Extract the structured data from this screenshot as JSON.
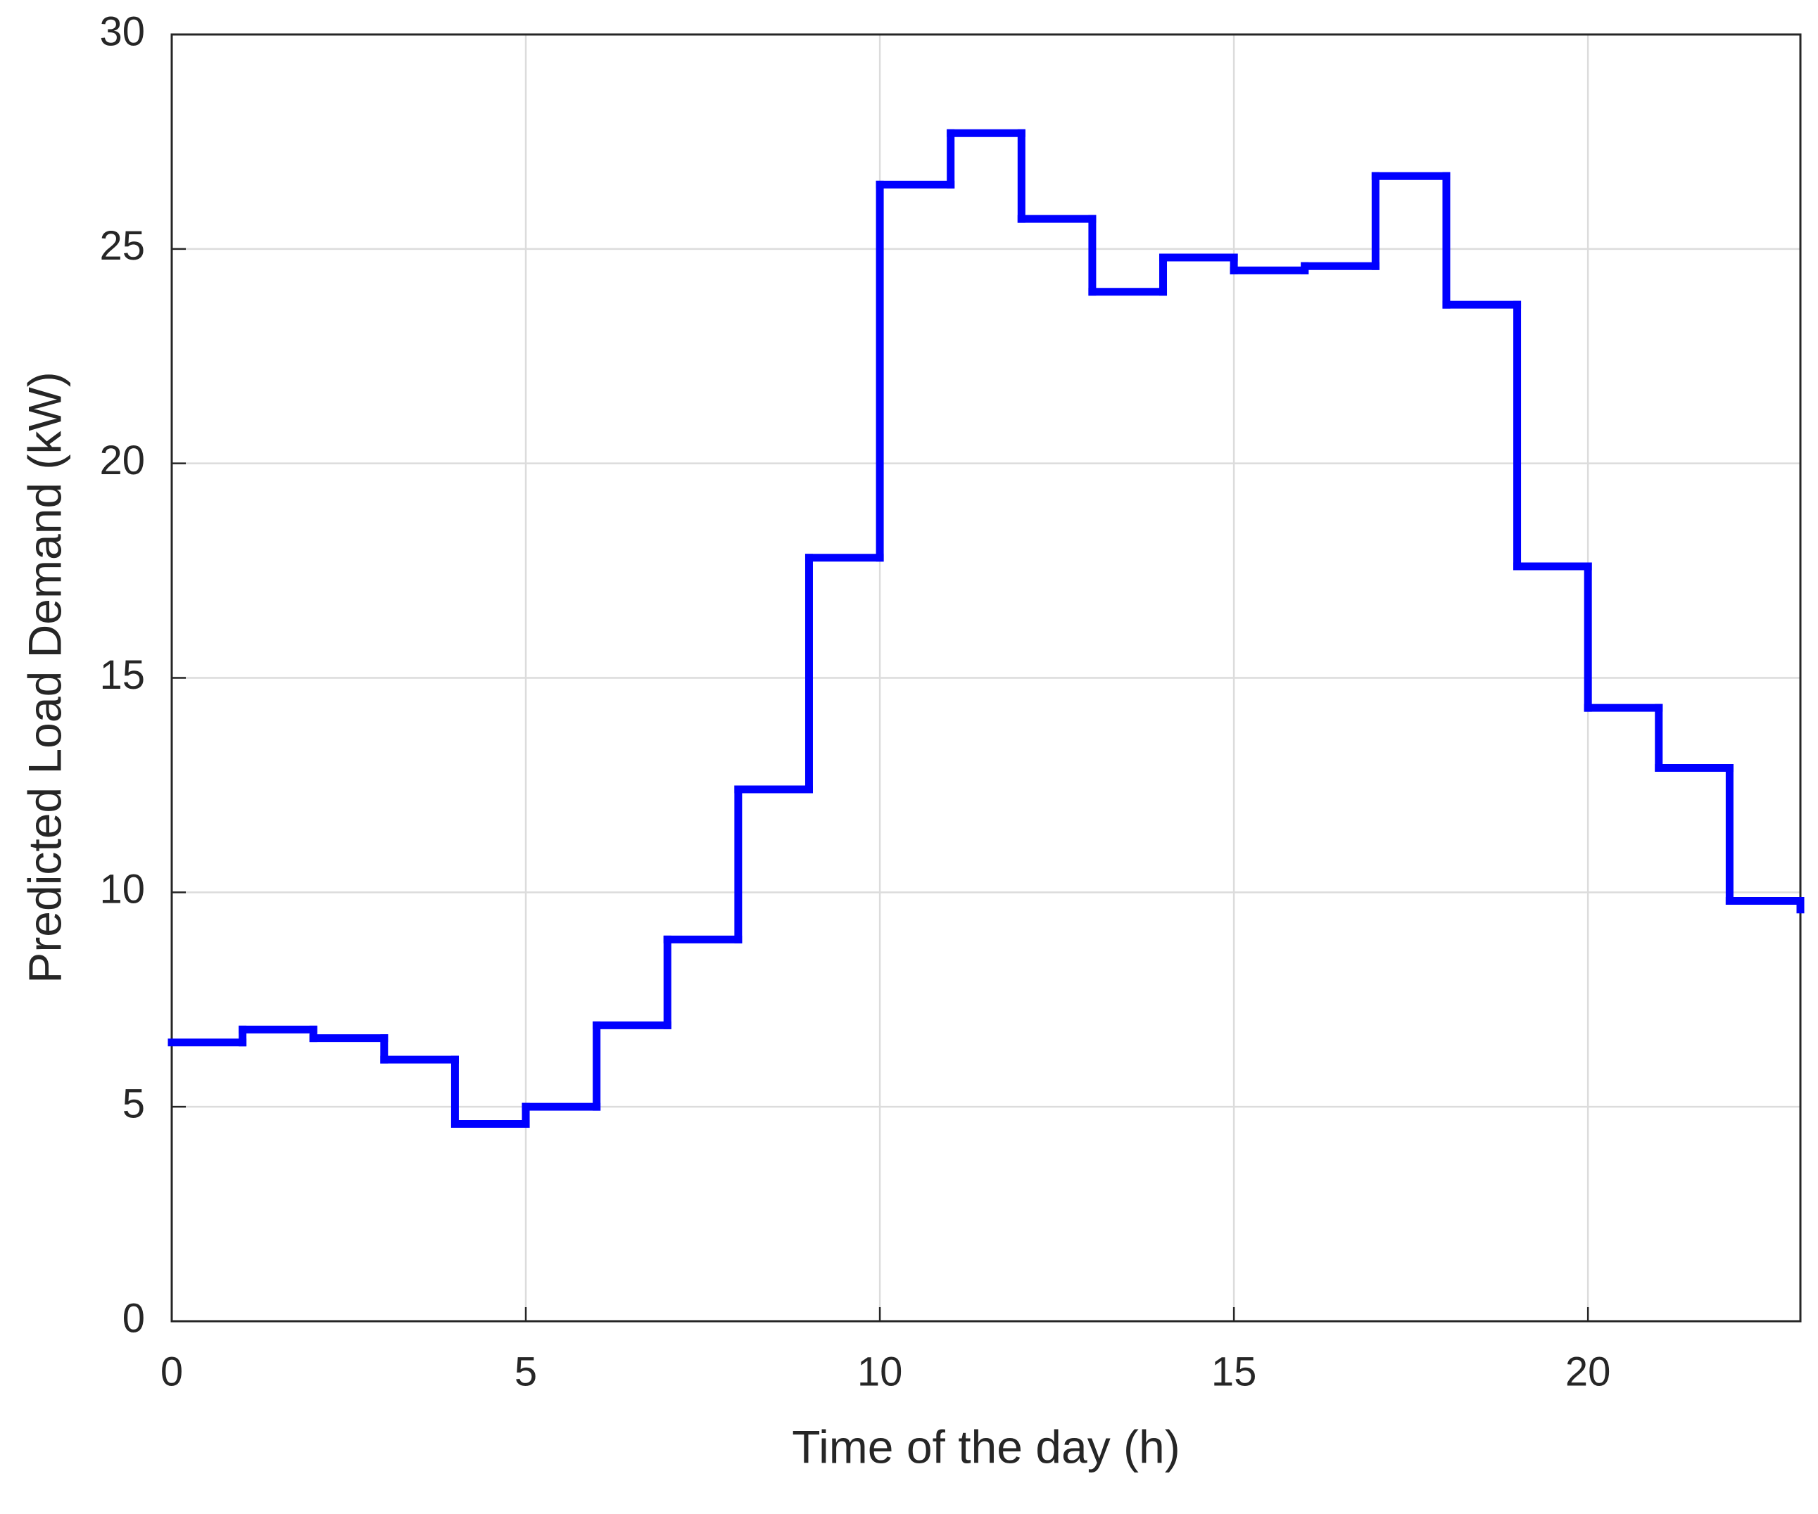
{
  "chart_data": {
    "type": "stairs",
    "xlabel": "Time of the day (h)",
    "ylabel": "Predicted Load Demand (kW)",
    "x": [
      0,
      1,
      2,
      3,
      4,
      5,
      6,
      7,
      8,
      9,
      10,
      11,
      12,
      13,
      14,
      15,
      16,
      17,
      18,
      19,
      20,
      21,
      22,
      23
    ],
    "values": [
      6.5,
      6.8,
      6.6,
      6.1,
      4.6,
      5.0,
      6.9,
      8.9,
      12.4,
      17.8,
      26.5,
      27.7,
      25.7,
      24.0,
      24.8,
      24.5,
      24.6,
      26.7,
      23.7,
      17.6,
      14.3,
      12.9,
      9.8,
      9.6
    ],
    "color": "#0000ff",
    "xlim": [
      0,
      23
    ],
    "xticks": [
      0,
      5,
      10,
      15,
      20
    ],
    "ylim": [
      0,
      30
    ],
    "yticks": [
      0,
      5,
      10,
      15,
      20,
      25,
      30
    ],
    "grid": true
  }
}
